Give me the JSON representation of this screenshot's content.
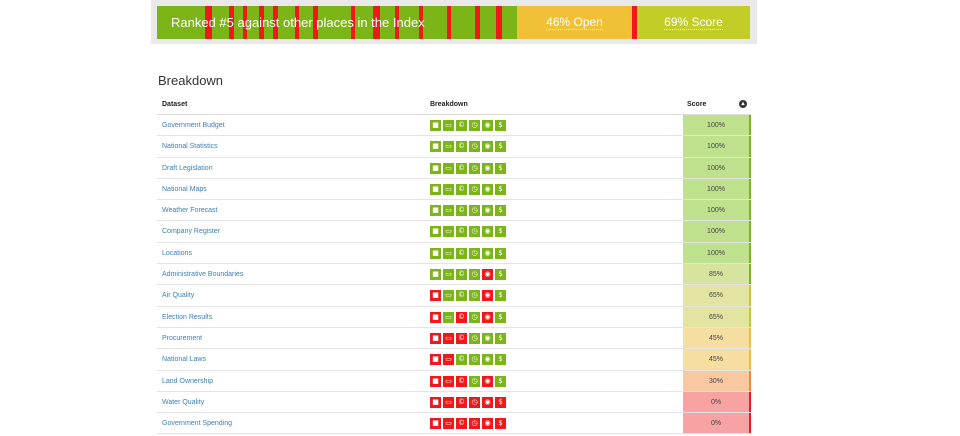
{
  "summary": {
    "rank_text": "Ranked #5 against other places in the Index",
    "open_text": "46% Open",
    "score_text": "69% Score",
    "colors": {
      "open": "#f0c036",
      "score": "#c2cd27",
      "rank_green": "#7cb518",
      "rank_red": "#f01818"
    }
  },
  "breakdown": {
    "title": "Breakdown",
    "headers": {
      "dataset": "Dataset",
      "breakdown": "Breakdown",
      "score": "Score"
    },
    "toggle_icon": "chevron-up-circle-icon",
    "icon_names": [
      "lock-icon",
      "keyboard-icon",
      "license-icon",
      "clock-icon",
      "eye-icon",
      "dollar-icon"
    ],
    "rows": [
      {
        "name": "Government Budget",
        "score": "100%",
        "icons": [
          "g",
          "g",
          "g",
          "g",
          "g",
          "g"
        ],
        "score_color": "#bfe08d",
        "border": "#7cb518"
      },
      {
        "name": "National Statistics",
        "score": "100%",
        "icons": [
          "g",
          "g",
          "g",
          "g",
          "g",
          "g"
        ],
        "score_color": "#bfe08d",
        "border": "#7cb518"
      },
      {
        "name": "Draft Legislation",
        "score": "100%",
        "icons": [
          "g",
          "g",
          "g",
          "g",
          "g",
          "g"
        ],
        "score_color": "#bfe08d",
        "border": "#7cb518"
      },
      {
        "name": "National Maps",
        "score": "100%",
        "icons": [
          "g",
          "g",
          "g",
          "g",
          "g",
          "g"
        ],
        "score_color": "#bfe08d",
        "border": "#7cb518"
      },
      {
        "name": "Weather Forecast",
        "score": "100%",
        "icons": [
          "g",
          "g",
          "g",
          "g",
          "g",
          "g"
        ],
        "score_color": "#bfe08d",
        "border": "#7cb518"
      },
      {
        "name": "Company Register",
        "score": "100%",
        "icons": [
          "g",
          "g",
          "g",
          "g",
          "g",
          "g"
        ],
        "score_color": "#bfe08d",
        "border": "#7cb518"
      },
      {
        "name": "Locations",
        "score": "100%",
        "icons": [
          "g",
          "g",
          "g",
          "g",
          "g",
          "g"
        ],
        "score_color": "#bfe08d",
        "border": "#7cb518"
      },
      {
        "name": "Administrative Boundaries",
        "score": "85%",
        "icons": [
          "g",
          "g",
          "g",
          "g",
          "r",
          "g"
        ],
        "score_color": "#d5e5a0",
        "border": "#7cb518"
      },
      {
        "name": "Air Quality",
        "score": "65%",
        "icons": [
          "r",
          "g",
          "g",
          "g",
          "r",
          "g"
        ],
        "score_color": "#e3e4a2",
        "border": "#c2cd27"
      },
      {
        "name": "Election Results",
        "score": "65%",
        "icons": [
          "r",
          "g",
          "r",
          "g",
          "r",
          "g"
        ],
        "score_color": "#e3e4a2",
        "border": "#c2cd27"
      },
      {
        "name": "Procurement",
        "score": "45%",
        "icons": [
          "r",
          "r",
          "r",
          "g",
          "g",
          "g"
        ],
        "score_color": "#f5dea0",
        "border": "#f0c036"
      },
      {
        "name": "National Laws",
        "score": "45%",
        "icons": [
          "r",
          "r",
          "g",
          "g",
          "g",
          "g"
        ],
        "score_color": "#f5dea0",
        "border": "#f0c036"
      },
      {
        "name": "Land Ownership",
        "score": "30%",
        "icons": [
          "r",
          "r",
          "r",
          "g",
          "r",
          "g"
        ],
        "score_color": "#f8c8a0",
        "border": "#f08a30"
      },
      {
        "name": "Water Quality",
        "score": "0%",
        "icons": [
          "r",
          "r",
          "r",
          "r",
          "r",
          "r"
        ],
        "score_color": "#f7a3a3",
        "border": "#f01818"
      },
      {
        "name": "Government Spending",
        "score": "0%",
        "icons": [
          "r",
          "r",
          "r",
          "r",
          "r",
          "r"
        ],
        "score_color": "#f7a3a3",
        "border": "#f01818"
      }
    ]
  }
}
